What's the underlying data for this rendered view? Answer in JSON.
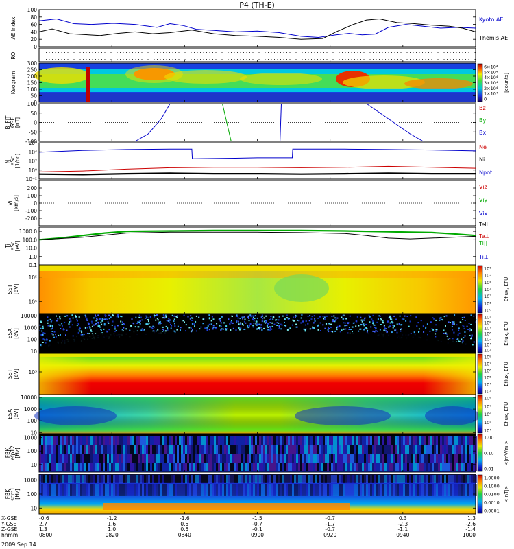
{
  "title": "P4 (TH-E)",
  "date_label": "2009 Sep 14",
  "chart_data": [
    {
      "id": "ae",
      "type": "line",
      "ylabel": "AE Index",
      "ylim": [
        0,
        100
      ],
      "yticks": [
        "100",
        "80",
        "60",
        "40",
        "20",
        "0"
      ],
      "yticks_values": [
        100,
        80,
        60,
        40,
        20,
        0
      ],
      "legend": [
        {
          "name": "Kyoto AE",
          "color": "#0000cc"
        },
        {
          "name": "Themis AE",
          "color": "#000000"
        }
      ],
      "series": [
        {
          "name": "Kyoto AE",
          "color": "#0000cc",
          "x": [
            0,
            0.04,
            0.08,
            0.12,
            0.17,
            0.22,
            0.27,
            0.3,
            0.33,
            0.36,
            0.4,
            0.45,
            0.5,
            0.55,
            0.6,
            0.64,
            0.68,
            0.71,
            0.74,
            0.77,
            0.8,
            0.84,
            0.88,
            0.92,
            0.96,
            1.0
          ],
          "y": [
            70,
            75,
            62,
            60,
            63,
            60,
            52,
            62,
            57,
            47,
            44,
            40,
            42,
            38,
            28,
            25,
            32,
            36,
            32,
            34,
            52,
            60,
            55,
            50,
            52,
            50
          ]
        },
        {
          "name": "Themis AE",
          "color": "#000000",
          "x": [
            0,
            0.03,
            0.07,
            0.1,
            0.14,
            0.18,
            0.22,
            0.26,
            0.3,
            0.35,
            0.4,
            0.45,
            0.5,
            0.55,
            0.6,
            0.65,
            0.68,
            0.72,
            0.75,
            0.78,
            0.82,
            0.86,
            0.9,
            0.94,
            0.97,
            1.0
          ],
          "y": [
            40,
            48,
            35,
            33,
            30,
            36,
            40,
            35,
            38,
            45,
            35,
            30,
            28,
            25,
            20,
            22,
            40,
            60,
            72,
            75,
            65,
            62,
            58,
            55,
            50,
            40
          ]
        }
      ]
    },
    {
      "id": "roi",
      "type": "table",
      "ylabel": "ROI"
    },
    {
      "id": "keogram",
      "type": "heatmap",
      "ylabel": "Keogram",
      "ylim": [
        0,
        300
      ],
      "yticks": [
        "300",
        "250",
        "200",
        "150",
        "100",
        "50",
        "0"
      ],
      "yticks_values": [
        300,
        250,
        200,
        150,
        100,
        50,
        0
      ],
      "colorbar_ticks": [
        "6×10⁴",
        "5×10⁴",
        "4×10⁴",
        "3×10⁴",
        "2×10⁴",
        "1×10⁴",
        "0"
      ],
      "colorbar_label": "[counts]"
    },
    {
      "id": "bfit",
      "type": "line",
      "ylabel": "B_FIT",
      "ylabel2": "GSE",
      "ylabel3": "[nT]",
      "ylim": [
        -100,
        100
      ],
      "yticks": [
        "100",
        "50",
        "0",
        "-50",
        "-100"
      ],
      "yticks_values": [
        100,
        50,
        0,
        -50,
        -100
      ],
      "legend": [
        {
          "name": "Bz",
          "color": "#cc0000"
        },
        {
          "name": "By",
          "color": "#00aa00"
        },
        {
          "name": "Bx",
          "color": "#0000cc"
        }
      ],
      "series": [
        {
          "name": "Bx",
          "color": "#0000cc",
          "x": [
            0.22,
            0.25,
            0.28,
            0.3
          ],
          "y": [
            -100,
            -60,
            20,
            100
          ]
        },
        {
          "name": "Bx",
          "color": "#0000cc",
          "x": [
            0.552,
            0.555
          ],
          "y": [
            -100,
            100
          ]
        },
        {
          "name": "Bx",
          "color": "#0000cc",
          "x": [
            0.75,
            0.8,
            0.85,
            0.88
          ],
          "y": [
            100,
            20,
            -60,
            -100
          ]
        },
        {
          "name": "By",
          "color": "#00aa00",
          "x": [
            0.42,
            0.44
          ],
          "y": [
            100,
            -100
          ]
        }
      ]
    },
    {
      "id": "ni",
      "type": "line",
      "ylabel": "Ni",
      "ylabel2": "eSc",
      "ylabel3": "[1/cc]",
      "yticks": [
        "10⁶",
        "10⁴",
        "10²",
        "10⁰",
        "10⁻²"
      ],
      "yticks_values": [
        6,
        4,
        2,
        0,
        -2
      ],
      "ylim": [
        -2,
        6
      ],
      "legend": [
        {
          "name": "Ne",
          "color": "#cc0000"
        },
        {
          "name": "Ni",
          "color": "#000000"
        },
        {
          "name": "Npot",
          "color": "#0000cc"
        }
      ],
      "series": [
        {
          "name": "Npot",
          "color": "#0000cc",
          "x": [
            0,
            0.1,
            0.2,
            0.3,
            0.35,
            0.351,
            0.45,
            0.5,
            0.58,
            0.581,
            0.7,
            0.8,
            0.9,
            1.0
          ],
          "y": [
            3.9,
            4.3,
            4.5,
            4.6,
            4.6,
            2.5,
            2.6,
            2.7,
            2.7,
            4.6,
            4.6,
            4.5,
            4.4,
            4.2
          ]
        },
        {
          "name": "Ne",
          "color": "#cc0000",
          "x": [
            0,
            0.1,
            0.2,
            0.3,
            0.4,
            0.5,
            0.6,
            0.7,
            0.8,
            0.9,
            1.0
          ],
          "y": [
            -0.4,
            -0.2,
            0.2,
            0.5,
            0.6,
            0.6,
            0.5,
            0.6,
            0.8,
            0.6,
            0.4
          ]
        },
        {
          "name": "Ni",
          "color": "#000000",
          "x": [
            0,
            0.1,
            0.2,
            0.3,
            0.4,
            0.5,
            0.6,
            0.7,
            0.8,
            0.9,
            1.0
          ],
          "y": [
            -0.9,
            -1.0,
            -0.8,
            -0.7,
            -0.8,
            -0.8,
            -0.9,
            -0.8,
            -0.7,
            -0.8,
            -0.8
          ]
        }
      ]
    },
    {
      "id": "vi",
      "type": "line",
      "ylabel": "Vi",
      "ylabel3": "[km/s]",
      "ylim": [
        -300,
        300
      ],
      "yticks": [
        "200",
        "100",
        "0",
        "-100",
        "-200"
      ],
      "yticks_values": [
        200,
        100,
        0,
        -100,
        -200
      ],
      "legend": [
        {
          "name": "Viz",
          "color": "#cc0000"
        },
        {
          "name": "Viy",
          "color": "#00aa00"
        },
        {
          "name": "Vix",
          "color": "#0000cc"
        }
      ],
      "series": []
    },
    {
      "id": "ti",
      "type": "line",
      "ylabel": "Ti",
      "ylabel2": "eSc",
      "ylabel3": "[eV]",
      "ylim": [
        -1,
        3.5
      ],
      "yticks": [
        "1000.0",
        "100.0",
        "10.0",
        "1.0",
        "0.1"
      ],
      "yticks_values": [
        3,
        2,
        1,
        0,
        -1
      ],
      "legend": [
        {
          "name": "Tell",
          "color": "#000000"
        },
        {
          "name": "Te⊥",
          "color": "#cc0000"
        },
        {
          "name": "Ti||",
          "color": "#00aa00"
        },
        {
          "name": "Ti⊥",
          "color": "#0000cc"
        }
      ],
      "series": [
        {
          "name": "Ti||",
          "color": "#00aa00",
          "x": [
            0,
            0.05,
            0.1,
            0.15,
            0.2,
            0.3,
            0.4,
            0.5,
            0.6,
            0.7,
            0.8,
            0.85,
            0.9,
            0.95,
            1.0
          ],
          "y": [
            2.0,
            2.2,
            2.5,
            2.8,
            3.0,
            3.05,
            3.1,
            3.1,
            3.1,
            3.05,
            2.95,
            2.9,
            2.85,
            2.7,
            2.5
          ]
        },
        {
          "name": "Tell",
          "color": "#000000",
          "x": [
            0,
            0.1,
            0.2,
            0.3,
            0.4,
            0.5,
            0.6,
            0.7,
            0.75,
            0.8,
            0.85,
            0.9,
            1.0
          ],
          "y": [
            2.0,
            2.3,
            2.8,
            2.9,
            2.9,
            2.9,
            2.85,
            2.75,
            2.5,
            2.2,
            2.1,
            2.2,
            2.4
          ]
        }
      ]
    },
    {
      "id": "sst-e",
      "type": "heatmap",
      "ylabel": "SST",
      "ylabel3": "[eV]",
      "yticks": [
        "10⁵",
        "10⁵"
      ],
      "yticks_values": [
        0.75,
        0.25
      ],
      "colorbar_ticks": [
        "10⁶",
        "10⁵",
        "10⁴",
        "10³",
        "10²",
        "10¹",
        "10⁰"
      ],
      "colorbar_label": "Eflux, EFU"
    },
    {
      "id": "esa-e",
      "type": "heatmap",
      "ylabel": "ESA",
      "ylabel3": "[eV]",
      "yticks": [
        "10000",
        "1000",
        "100",
        "10"
      ],
      "yticks_values": [
        0.95,
        0.65,
        0.35,
        0.05
      ],
      "colorbar_ticks": [
        "10⁹",
        "10⁸",
        "10⁷",
        "10⁶",
        "10⁵",
        "10⁴",
        "10³"
      ],
      "colorbar_label": "Eflux, EFU"
    },
    {
      "id": "sst-i",
      "type": "heatmap",
      "ylabel": "SST",
      "ylabel3": "[eV]",
      "yticks": [
        "10⁵"
      ],
      "yticks_values": [
        0.55
      ],
      "colorbar_ticks": [
        "10⁸",
        "10⁷",
        "10⁶",
        "10⁵",
        "10⁴",
        "10³"
      ],
      "colorbar_label": "Eflux, EFU"
    },
    {
      "id": "esa-i",
      "type": "heatmap",
      "ylabel": "ESA",
      "ylabel3": "[eV]",
      "yticks": [
        "10000",
        "1000",
        "100",
        "10"
      ],
      "yticks_values": [
        0.93,
        0.63,
        0.33,
        0.03
      ],
      "colorbar_ticks": [
        "10⁸",
        "10⁷",
        "10⁶",
        "10⁵",
        "10⁴"
      ],
      "colorbar_label": "Eflux, EFU"
    },
    {
      "id": "fbk1",
      "type": "heatmap",
      "ylabel": "FBK",
      "ylabel2": "efp12",
      "ylabel3": "[Hz]",
      "yticks": [
        "1000",
        "100",
        "10"
      ],
      "yticks_values": [
        0.9,
        0.55,
        0.2
      ],
      "colorbar_ticks": [
        "1.00",
        "0.10",
        "0.01"
      ],
      "colorbar_label": "<|mV/m|>"
    },
    {
      "id": "fbk2",
      "type": "heatmap",
      "ylabel": "FBK",
      "ylabel2": "scm1",
      "ylabel3": "[Hz]",
      "yticks": [
        "1000",
        "100",
        "10"
      ],
      "yticks_values": [
        0.85,
        0.5,
        0.15
      ],
      "colorbar_ticks": [
        "1.0000",
        "0.1000",
        "0.0100",
        "0.0010",
        "0.0001"
      ],
      "colorbar_label": "<|nT|>"
    }
  ],
  "xaxis": {
    "row_labels": [
      "X-GSE",
      "Y-GSE",
      "Z-GSE",
      "hhmm"
    ],
    "columns": [
      {
        "pos": 0.0,
        "vals": [
          "-0.6",
          "2.7",
          "1.3",
          "0800"
        ]
      },
      {
        "pos": 0.1667,
        "vals": [
          "-1.2",
          "1.6",
          "1.0",
          "0820"
        ]
      },
      {
        "pos": 0.3333,
        "vals": [
          "-1.6",
          "0.5",
          "0.5",
          "0840"
        ]
      },
      {
        "pos": 0.5,
        "vals": [
          "-1.5",
          "-0.7",
          "-0.1",
          "0900"
        ]
      },
      {
        "pos": 0.6667,
        "vals": [
          "-0.7",
          "-1.7",
          "-0.7",
          "0920"
        ]
      },
      {
        "pos": 0.8333,
        "vals": [
          "0.3",
          "-2.3",
          "-1.1",
          "0940"
        ]
      },
      {
        "pos": 1.0,
        "vals": [
          "1.3",
          "-2.6",
          "-1.4",
          "1000"
        ]
      }
    ]
  },
  "colors": {
    "red": "#cc0000",
    "green": "#00aa00",
    "blue": "#0000cc",
    "black": "#000000"
  }
}
